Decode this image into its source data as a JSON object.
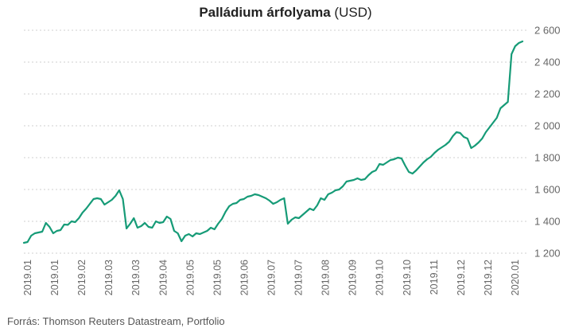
{
  "chart_data": {
    "type": "line",
    "title_bold": "Palládium árfolyama",
    "title_rest": " (USD)",
    "source": "Forrás: Thomson Reuters Datastream, Portfolio",
    "ylim": [
      1200,
      2600
    ],
    "yticks": [
      1200,
      1400,
      1600,
      1800,
      2000,
      2200,
      2400,
      2600
    ],
    "ytick_labels": [
      "1 200",
      "1 400",
      "1 600",
      "1 800",
      "2 000",
      "2 200",
      "2 400",
      "2 600"
    ],
    "xtick_labels": [
      "2019.01",
      "2019.01",
      "2019.02",
      "2019.03",
      "2019.03",
      "2019.04",
      "2019.05",
      "2019.05",
      "2019.06",
      "2019.07",
      "2019.07",
      "2019.08",
      "2019.09",
      "2019.10",
      "2019.10",
      "2019.11",
      "2019.12",
      "2019.12",
      "2020.01"
    ],
    "grid": true,
    "line_color": "#169b77",
    "series": [
      {
        "values": [
          1265,
          1270,
          1310,
          1325,
          1330,
          1335,
          1390,
          1365,
          1325,
          1340,
          1345,
          1380,
          1378,
          1400,
          1395,
          1420,
          1455,
          1480,
          1510,
          1540,
          1545,
          1540,
          1505,
          1520,
          1535,
          1560,
          1595,
          1540,
          1355,
          1385,
          1420,
          1360,
          1370,
          1390,
          1365,
          1360,
          1400,
          1390,
          1395,
          1430,
          1415,
          1340,
          1325,
          1275,
          1310,
          1320,
          1305,
          1325,
          1320,
          1330,
          1340,
          1360,
          1350,
          1385,
          1415,
          1460,
          1495,
          1510,
          1515,
          1535,
          1540,
          1555,
          1560,
          1570,
          1565,
          1555,
          1545,
          1530,
          1510,
          1520,
          1535,
          1545,
          1385,
          1410,
          1425,
          1420,
          1440,
          1460,
          1480,
          1470,
          1500,
          1545,
          1535,
          1570,
          1580,
          1595,
          1600,
          1620,
          1650,
          1655,
          1660,
          1670,
          1660,
          1665,
          1690,
          1710,
          1720,
          1760,
          1755,
          1770,
          1785,
          1790,
          1800,
          1795,
          1750,
          1710,
          1700,
          1720,
          1745,
          1770,
          1790,
          1805,
          1830,
          1850,
          1865,
          1880,
          1900,
          1935,
          1960,
          1955,
          1930,
          1920,
          1860,
          1875,
          1895,
          1920,
          1960,
          1990,
          2020,
          2050,
          2110,
          2130,
          2150,
          2450,
          2500,
          2520,
          2530
        ]
      }
    ]
  }
}
